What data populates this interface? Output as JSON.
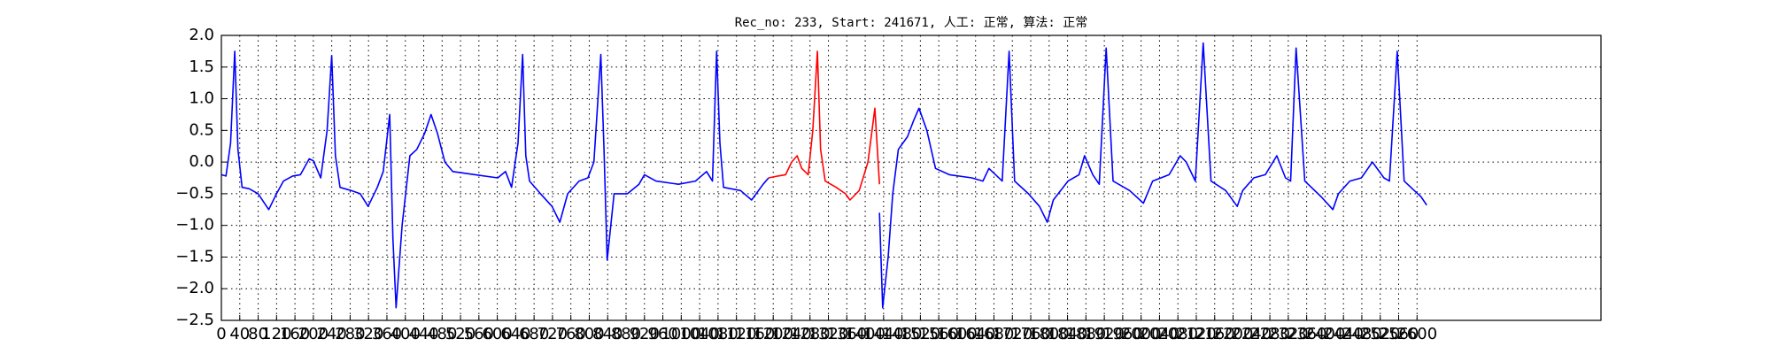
{
  "chart_data": {
    "type": "line",
    "title": "Rec_no: 233, Start: 241671, 人工: 正常, 算法: 正常",
    "xlim": [
      0,
      3000
    ],
    "xticks": [
      0,
      40,
      80,
      120,
      160,
      200,
      240,
      280,
      320,
      360,
      400,
      440,
      480,
      520,
      560,
      600,
      640,
      680,
      720,
      760,
      800,
      840,
      880,
      920,
      960,
      1000,
      1040,
      1080,
      1120,
      1160,
      1200,
      1240,
      1280,
      1320,
      1360,
      1400,
      1440,
      1480,
      1520,
      1560,
      1600,
      1640,
      1680,
      1720,
      1760,
      1800,
      1840,
      1880,
      1920,
      1960,
      2000,
      2040,
      2080,
      2120,
      2160,
      2200,
      2240,
      2280,
      2320,
      2360,
      2400,
      2440,
      2480,
      2520,
      2560,
      2600
    ],
    "ylim": [
      -2.5,
      2.0
    ],
    "yticks": [
      {
        "value": -2.5,
        "label": "−2.5"
      },
      {
        "value": -2.0,
        "label": "−2.0"
      },
      {
        "value": -1.5,
        "label": "−1.5"
      },
      {
        "value": -1.0,
        "label": "−1.0"
      },
      {
        "value": -0.5,
        "label": "−0.5"
      },
      {
        "value": 0.0,
        "label": "0.0"
      },
      0.5,
      {
        "value": 1.0,
        "label": "1.0"
      },
      1.5,
      {
        "value": 2.0,
        "label": "2.0"
      }
    ],
    "grid": true,
    "series": [
      {
        "color": "#0000ff",
        "x": [
          0,
          10,
          20,
          29,
          36,
          45,
          60,
          80,
          103,
          120,
          135,
          155,
          172,
          191,
          200,
          216,
          230,
          240,
          248,
          258,
          282,
          302,
          319,
          339,
          352,
          366,
          373,
          380,
          393,
          410,
          425,
          442,
          456,
          470,
          486,
          503,
          552,
          601,
          618,
          631,
          645,
          655,
          662,
          670,
          694,
          719,
          736,
          753,
          778,
          797,
          810,
          825,
          832,
          839,
          854,
          883,
          908,
          920,
          945,
          994,
          1031,
          1055,
          1068,
          1077,
          1084,
          1092,
          1129,
          1153,
          1178,
          1190,
          1300,
          1431,
          1438,
          1450,
          1460,
          1472,
          1492,
          1505,
          1517,
          1534,
          1553,
          1583,
          1632,
          1656,
          1669,
          1698,
          1713,
          1725,
          1755,
          1779,
          1796,
          1809,
          1841,
          1865,
          1877,
          1895,
          1909,
          1924,
          1939,
          1975,
          2005,
          2025,
          2061,
          2085,
          2098,
          2118,
          2135,
          2152,
          2184,
          2209,
          2221,
          2245,
          2270,
          2295,
          2314,
          2325,
          2337,
          2356,
          2392,
          2417,
          2429,
          2454,
          2479,
          2503,
          2528,
          2540,
          2557,
          2572,
          2594,
          2609,
          2621
        ],
        "values": [
          -0.2,
          -0.22,
          0.3,
          1.75,
          0.2,
          -0.4,
          -0.42,
          -0.5,
          -0.75,
          -0.5,
          -0.3,
          -0.22,
          -0.2,
          0.05,
          0.02,
          -0.25,
          0.5,
          1.68,
          0.1,
          -0.4,
          -0.45,
          -0.5,
          -0.7,
          -0.4,
          -0.15,
          0.75,
          -1.2,
          -2.3,
          -1.0,
          0.1,
          0.2,
          0.45,
          0.75,
          0.45,
          0.0,
          -0.15,
          -0.2,
          -0.25,
          -0.15,
          -0.4,
          0.3,
          1.7,
          0.1,
          -0.3,
          -0.5,
          -0.7,
          -0.95,
          -0.5,
          -0.3,
          -0.25,
          0.0,
          1.7,
          0.2,
          -1.55,
          -0.5,
          -0.5,
          -0.35,
          -0.2,
          -0.3,
          -0.35,
          -0.3,
          -0.15,
          -0.3,
          1.75,
          0.3,
          -0.4,
          -0.45,
          -0.6,
          -0.35,
          -0.25,
          null,
          -0.8,
          -2.3,
          -1.5,
          -0.5,
          0.2,
          0.4,
          0.65,
          0.85,
          0.5,
          -0.1,
          -0.2,
          -0.25,
          -0.3,
          -0.1,
          -0.3,
          1.75,
          -0.3,
          -0.5,
          -0.7,
          -0.95,
          -0.6,
          -0.3,
          -0.2,
          0.1,
          -0.2,
          -0.35,
          1.8,
          -0.3,
          -0.45,
          -0.65,
          -0.3,
          -0.2,
          0.1,
          0.0,
          -0.3,
          1.88,
          -0.3,
          -0.45,
          -0.7,
          -0.45,
          -0.25,
          -0.2,
          0.1,
          -0.25,
          -0.3,
          1.8,
          -0.3,
          -0.55,
          -0.75,
          -0.5,
          -0.3,
          -0.25,
          0.0,
          -0.25,
          -0.3,
          1.75,
          -0.3,
          -0.45,
          -0.55,
          -0.68
        ]
      },
      {
        "color": "#ff0000",
        "x": [
          1190,
          1210,
          1227,
          1240,
          1252,
          1262,
          1276,
          1286,
          1296,
          1303,
          1313,
          1337,
          1357,
          1367,
          1387,
          1406,
          1421,
          1431
        ],
        "values": [
          -0.25,
          -0.22,
          -0.2,
          0.0,
          0.1,
          -0.1,
          -0.2,
          0.5,
          1.75,
          0.2,
          -0.3,
          -0.4,
          -0.5,
          -0.6,
          -0.45,
          0.0,
          0.85,
          -0.35
        ]
      }
    ]
  }
}
